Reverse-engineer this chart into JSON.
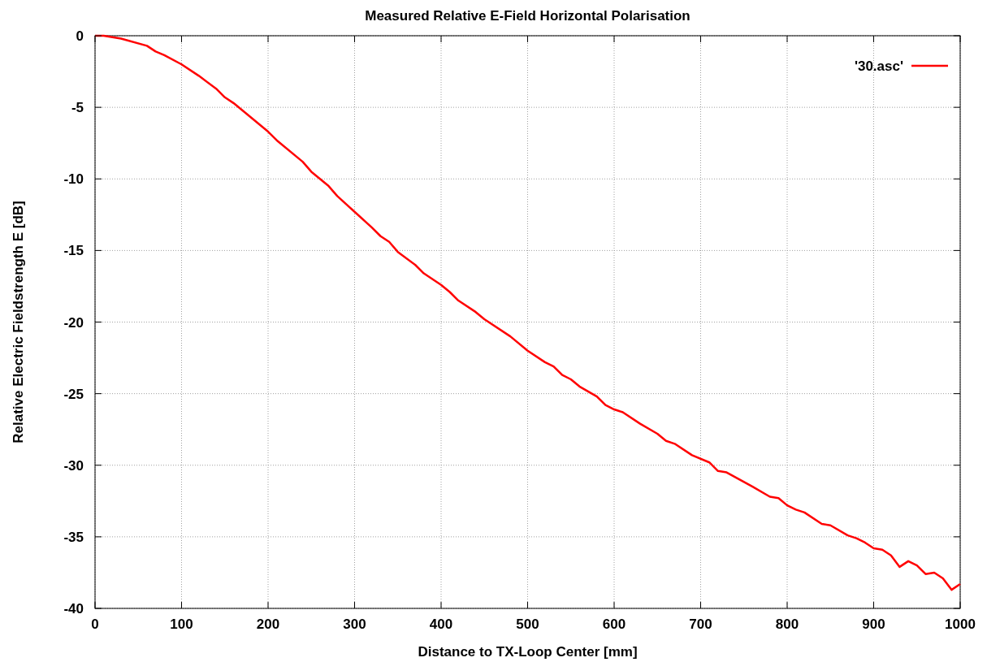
{
  "chart_data": {
    "type": "line",
    "title": "Measured Relative E-Field Horizontal Polarisation",
    "xlabel": "Distance to TX-Loop Center [mm]",
    "ylabel": "Relative Electric Fieldstrength E [dB]",
    "x": [
      0,
      10,
      30,
      60,
      70,
      80,
      100,
      120,
      140,
      150,
      160,
      200,
      210,
      240,
      250,
      270,
      280,
      300,
      320,
      330,
      340,
      350,
      370,
      380,
      400,
      410,
      420,
      440,
      450,
      480,
      500,
      520,
      530,
      540,
      550,
      560,
      580,
      590,
      600,
      610,
      630,
      650,
      660,
      670,
      690,
      710,
      720,
      730,
      760,
      780,
      790,
      800,
      810,
      820,
      840,
      850,
      870,
      880,
      890,
      900,
      910,
      920,
      930,
      940,
      950,
      960,
      970,
      980,
      990,
      1000
    ],
    "series": [
      {
        "name": "'30.asc'",
        "color": "#ff0000",
        "values": [
          0,
          0,
          -0.2,
          -0.7,
          -1.1,
          -1.35,
          -2.0,
          -2.8,
          -3.7,
          -4.3,
          -4.7,
          -6.7,
          -7.3,
          -8.8,
          -9.5,
          -10.5,
          -11.2,
          -12.3,
          -13.4,
          -14.0,
          -14.4,
          -15.1,
          -16.0,
          -16.6,
          -17.4,
          -17.9,
          -18.5,
          -19.3,
          -19.8,
          -21.0,
          -22.0,
          -22.8,
          -23.1,
          -23.7,
          -24.0,
          -24.5,
          -25.2,
          -25.8,
          -26.1,
          -26.3,
          -27.1,
          -27.8,
          -28.3,
          -28.5,
          -29.3,
          -29.8,
          -30.4,
          -30.5,
          -31.5,
          -32.2,
          -32.3,
          -32.8,
          -33.1,
          -33.3,
          -34.1,
          -34.2,
          -34.9,
          -35.1,
          -35.4,
          -35.8,
          -35.9,
          -36.3,
          -37.1,
          -36.7,
          -37.0,
          -37.6,
          -37.5,
          -37.9,
          -38.7,
          -38.3
        ]
      }
    ],
    "xlim": [
      0,
      1000
    ],
    "xticks": [
      0,
      100,
      200,
      300,
      400,
      500,
      600,
      700,
      800,
      900,
      1000
    ],
    "ylim": [
      -40,
      0
    ],
    "yticks": [
      -40,
      -35,
      -30,
      -25,
      -20,
      -15,
      -10,
      -5,
      0
    ],
    "grid": true,
    "legend": "top right",
    "marker": "none",
    "line_style": "solid"
  }
}
